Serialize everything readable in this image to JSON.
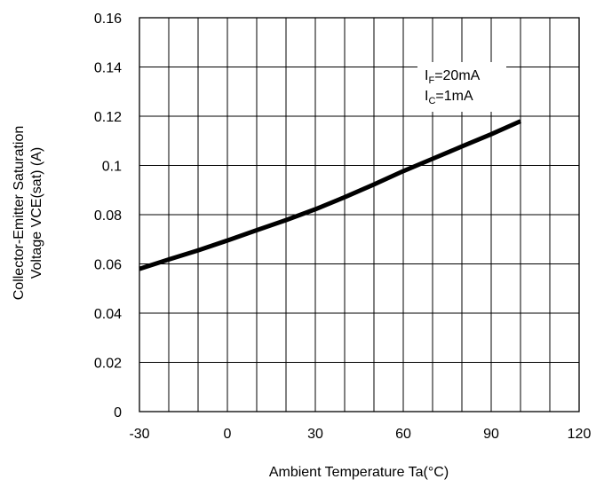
{
  "chart_data": {
    "type": "line",
    "xlabel": "Ambient Temperature Ta(°C)",
    "ylabel_line1": "Collector-Emitter Saturation",
    "ylabel_line2": "Voltage VCE(sat) (A)",
    "xlim": [
      -30,
      120
    ],
    "ylim": [
      0,
      0.16
    ],
    "x_ticks": [
      "-30",
      "0",
      "30",
      "60",
      "90",
      "120"
    ],
    "y_ticks": [
      "0",
      "0.02",
      "0.04",
      "0.06",
      "0.08",
      "0.1",
      "0.12",
      "0.14",
      "0.16"
    ],
    "x_grid_step": 10,
    "y_grid_step": 0.02,
    "grid": true,
    "series": [
      {
        "x": [
          -30,
          -20,
          -10,
          0,
          10,
          20,
          30,
          40,
          50,
          60,
          70,
          80,
          90,
          100
        ],
        "y": [
          0.058,
          0.0618,
          0.0655,
          0.0695,
          0.0737,
          0.0778,
          0.0822,
          0.0871,
          0.0923,
          0.0977,
          0.1027,
          0.1077,
          0.1127,
          0.118
        ]
      }
    ],
    "annotation": {
      "line1_main": "I",
      "line1_sub": "F",
      "line1_rest": "=20mA",
      "line2_main": "I",
      "line2_sub": "C",
      "line2_rest": "=1mA"
    }
  }
}
